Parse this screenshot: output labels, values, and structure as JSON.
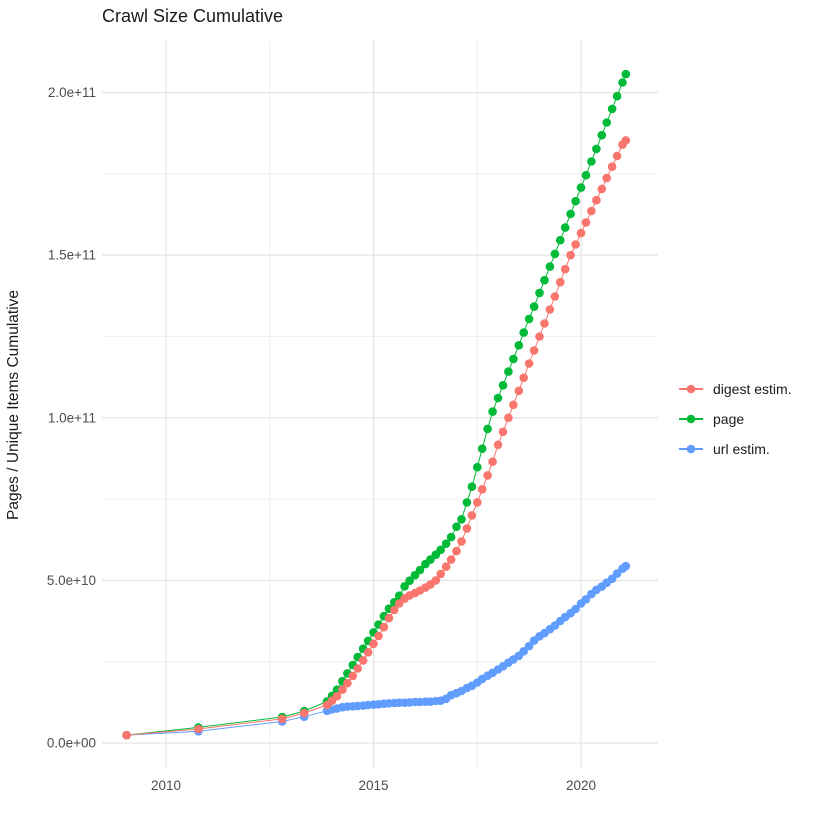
{
  "title": "Crawl Size Cumulative",
  "axes": {
    "y_title": "Pages / Unique Items Cumulative",
    "x_ticks": [
      {
        "label": "2010",
        "year": 2010
      },
      {
        "label": "2015",
        "year": 2015
      },
      {
        "label": "2020",
        "year": 2020
      }
    ],
    "y_ticks": [
      {
        "label": "0.0e+00",
        "value_e9": 0
      },
      {
        "label": "5.0e+10",
        "value_e9": 50
      },
      {
        "label": "1.0e+11",
        "value_e9": 100
      },
      {
        "label": "1.5e+11",
        "value_e9": 150
      },
      {
        "label": "2.0e+11",
        "value_e9": 200
      }
    ]
  },
  "legend": {
    "items": [
      {
        "label": "digest estim.",
        "color": "#F8766D"
      },
      {
        "label": "page",
        "color": "#00BA38"
      },
      {
        "label": "url estim.",
        "color": "#619CFF"
      }
    ]
  },
  "chart_data": {
    "type": "scatter",
    "title": "Crawl Size Cumulative",
    "xlabel": "",
    "ylabel": "Pages / Unique Items Cumulative",
    "x_unit": "decimal year",
    "value_scale": 1000000000,
    "xlim": [
      2008.4,
      2021.7
    ],
    "ylim_e9": [
      -8,
      216
    ],
    "grid": true,
    "legend_position": "right",
    "x_minor_gridlines": [
      2012.5,
      2017.5
    ],
    "y_minor_gridlines_e9": [
      25,
      75,
      125,
      175
    ],
    "draw_order": [
      "page",
      "url estim.",
      "digest estim."
    ],
    "series": [
      {
        "name": "digest estim.",
        "color": "#F8766D",
        "points": [
          [
            2009.05,
            2.4
          ],
          [
            2010.78,
            4.3
          ],
          [
            2012.8,
            7.4
          ],
          [
            2013.33,
            9.2
          ],
          [
            2013.88,
            11.7
          ],
          [
            2014.0,
            13.0
          ],
          [
            2014.12,
            14.4
          ],
          [
            2014.25,
            16.4
          ],
          [
            2014.37,
            18.4
          ],
          [
            2014.5,
            20.6
          ],
          [
            2014.62,
            22.9
          ],
          [
            2014.75,
            25.4
          ],
          [
            2014.87,
            27.9
          ],
          [
            2015.0,
            30.5
          ],
          [
            2015.12,
            32.9
          ],
          [
            2015.25,
            35.6
          ],
          [
            2015.37,
            38.4
          ],
          [
            2015.5,
            40.9
          ],
          [
            2015.62,
            42.9
          ],
          [
            2015.75,
            44.4
          ],
          [
            2015.87,
            45.4
          ],
          [
            2016.0,
            46.1
          ],
          [
            2016.12,
            46.9
          ],
          [
            2016.25,
            47.8
          ],
          [
            2016.37,
            48.7
          ],
          [
            2016.5,
            50.0
          ],
          [
            2016.62,
            52.0
          ],
          [
            2016.75,
            54.2
          ],
          [
            2016.87,
            56.4
          ],
          [
            2017.0,
            59.0
          ],
          [
            2017.12,
            62.0
          ],
          [
            2017.25,
            66.0
          ],
          [
            2017.37,
            70.0
          ],
          [
            2017.5,
            74.0
          ],
          [
            2017.62,
            78.0
          ],
          [
            2017.75,
            82.3
          ],
          [
            2017.87,
            86.5
          ],
          [
            2018.0,
            91.7
          ],
          [
            2018.12,
            95.7
          ],
          [
            2018.25,
            100.0
          ],
          [
            2018.37,
            104.0
          ],
          [
            2018.5,
            108.3
          ],
          [
            2018.62,
            112.3
          ],
          [
            2018.75,
            116.7
          ],
          [
            2018.87,
            120.7
          ],
          [
            2019.0,
            125.0
          ],
          [
            2019.12,
            129.0
          ],
          [
            2019.25,
            133.3
          ],
          [
            2019.37,
            137.3
          ],
          [
            2019.5,
            141.7
          ],
          [
            2019.62,
            145.7
          ],
          [
            2019.75,
            150.0
          ],
          [
            2019.87,
            153.3
          ],
          [
            2020.0,
            156.8
          ],
          [
            2020.12,
            160.1
          ],
          [
            2020.25,
            163.6
          ],
          [
            2020.37,
            166.9
          ],
          [
            2020.5,
            170.4
          ],
          [
            2020.62,
            173.7
          ],
          [
            2020.75,
            177.2
          ],
          [
            2020.87,
            180.5
          ],
          [
            2021.0,
            184.0
          ],
          [
            2021.08,
            185.3
          ]
        ]
      },
      {
        "name": "page",
        "color": "#00BA38",
        "points": [
          [
            2009.05,
            2.4
          ],
          [
            2010.78,
            4.8
          ],
          [
            2012.8,
            8.0
          ],
          [
            2013.33,
            9.8
          ],
          [
            2013.88,
            12.8
          ],
          [
            2014.0,
            14.5
          ],
          [
            2014.12,
            16.4
          ],
          [
            2014.25,
            19.0
          ],
          [
            2014.37,
            21.4
          ],
          [
            2014.5,
            24.0
          ],
          [
            2014.62,
            26.4
          ],
          [
            2014.75,
            29.0
          ],
          [
            2014.87,
            31.4
          ],
          [
            2015.0,
            34.0
          ],
          [
            2015.12,
            36.4
          ],
          [
            2015.25,
            39.0
          ],
          [
            2015.37,
            41.3
          ],
          [
            2015.5,
            43.3
          ],
          [
            2015.62,
            45.3
          ],
          [
            2015.75,
            48.2
          ],
          [
            2015.87,
            49.9
          ],
          [
            2016.0,
            51.6
          ],
          [
            2016.12,
            53.2
          ],
          [
            2016.25,
            55.0
          ],
          [
            2016.37,
            56.4
          ],
          [
            2016.5,
            57.9
          ],
          [
            2016.62,
            59.4
          ],
          [
            2016.75,
            61.3
          ],
          [
            2016.87,
            63.3
          ],
          [
            2017.0,
            66.5
          ],
          [
            2017.12,
            68.8
          ],
          [
            2017.25,
            74.0
          ],
          [
            2017.37,
            78.8
          ],
          [
            2017.5,
            84.8
          ],
          [
            2017.62,
            90.5
          ],
          [
            2017.75,
            96.6
          ],
          [
            2017.87,
            101.9
          ],
          [
            2018.0,
            106.1
          ],
          [
            2018.12,
            110.0
          ],
          [
            2018.25,
            114.2
          ],
          [
            2018.37,
            118.1
          ],
          [
            2018.5,
            122.3
          ],
          [
            2018.62,
            126.2
          ],
          [
            2018.75,
            130.4
          ],
          [
            2018.87,
            134.2
          ],
          [
            2019.0,
            138.4
          ],
          [
            2019.12,
            142.3
          ],
          [
            2019.25,
            146.5
          ],
          [
            2019.37,
            150.4
          ],
          [
            2019.5,
            154.6
          ],
          [
            2019.62,
            158.5
          ],
          [
            2019.75,
            162.7
          ],
          [
            2019.87,
            166.6
          ],
          [
            2020.0,
            170.8
          ],
          [
            2020.12,
            174.6
          ],
          [
            2020.25,
            178.8
          ],
          [
            2020.37,
            182.7
          ],
          [
            2020.5,
            186.9
          ],
          [
            2020.62,
            190.8
          ],
          [
            2020.75,
            195.0
          ],
          [
            2020.87,
            198.9
          ],
          [
            2021.0,
            203.1
          ],
          [
            2021.08,
            205.7
          ]
        ]
      },
      {
        "name": "url estim.",
        "color": "#619CFF",
        "points": [
          [
            2009.05,
            2.4
          ],
          [
            2010.78,
            3.6
          ],
          [
            2012.8,
            6.6
          ],
          [
            2013.33,
            8.1
          ],
          [
            2013.88,
            9.9
          ],
          [
            2014.0,
            10.3
          ],
          [
            2014.12,
            10.6
          ],
          [
            2014.25,
            11.0
          ],
          [
            2014.37,
            11.2
          ],
          [
            2014.5,
            11.3
          ],
          [
            2014.62,
            11.4
          ],
          [
            2014.75,
            11.5
          ],
          [
            2014.87,
            11.7
          ],
          [
            2015.0,
            11.8
          ],
          [
            2015.12,
            11.9
          ],
          [
            2015.25,
            12.1
          ],
          [
            2015.37,
            12.2
          ],
          [
            2015.5,
            12.3
          ],
          [
            2015.62,
            12.4
          ],
          [
            2015.75,
            12.4
          ],
          [
            2015.87,
            12.5
          ],
          [
            2016.0,
            12.6
          ],
          [
            2016.12,
            12.6
          ],
          [
            2016.25,
            12.7
          ],
          [
            2016.37,
            12.7
          ],
          [
            2016.5,
            12.9
          ],
          [
            2016.62,
            13.0
          ],
          [
            2016.75,
            13.6
          ],
          [
            2016.87,
            14.7
          ],
          [
            2017.0,
            15.3
          ],
          [
            2017.12,
            16.0
          ],
          [
            2017.25,
            16.9
          ],
          [
            2017.37,
            17.6
          ],
          [
            2017.5,
            18.6
          ],
          [
            2017.62,
            19.7
          ],
          [
            2017.75,
            20.7
          ],
          [
            2017.87,
            21.6
          ],
          [
            2018.0,
            22.6
          ],
          [
            2018.12,
            23.6
          ],
          [
            2018.25,
            24.7
          ],
          [
            2018.37,
            25.7
          ],
          [
            2018.5,
            26.8
          ],
          [
            2018.62,
            28.2
          ],
          [
            2018.75,
            29.8
          ],
          [
            2018.87,
            31.5
          ],
          [
            2019.0,
            32.8
          ],
          [
            2019.12,
            33.8
          ],
          [
            2019.25,
            35.0
          ],
          [
            2019.37,
            36.1
          ],
          [
            2019.5,
            37.5
          ],
          [
            2019.62,
            38.7
          ],
          [
            2019.75,
            39.9
          ],
          [
            2019.87,
            41.2
          ],
          [
            2020.0,
            42.9
          ],
          [
            2020.12,
            44.2
          ],
          [
            2020.25,
            45.8
          ],
          [
            2020.37,
            47.1
          ],
          [
            2020.5,
            48.1
          ],
          [
            2020.62,
            49.3
          ],
          [
            2020.75,
            50.5
          ],
          [
            2020.87,
            52.1
          ],
          [
            2021.0,
            53.6
          ],
          [
            2021.08,
            54.4
          ]
        ]
      }
    ]
  }
}
